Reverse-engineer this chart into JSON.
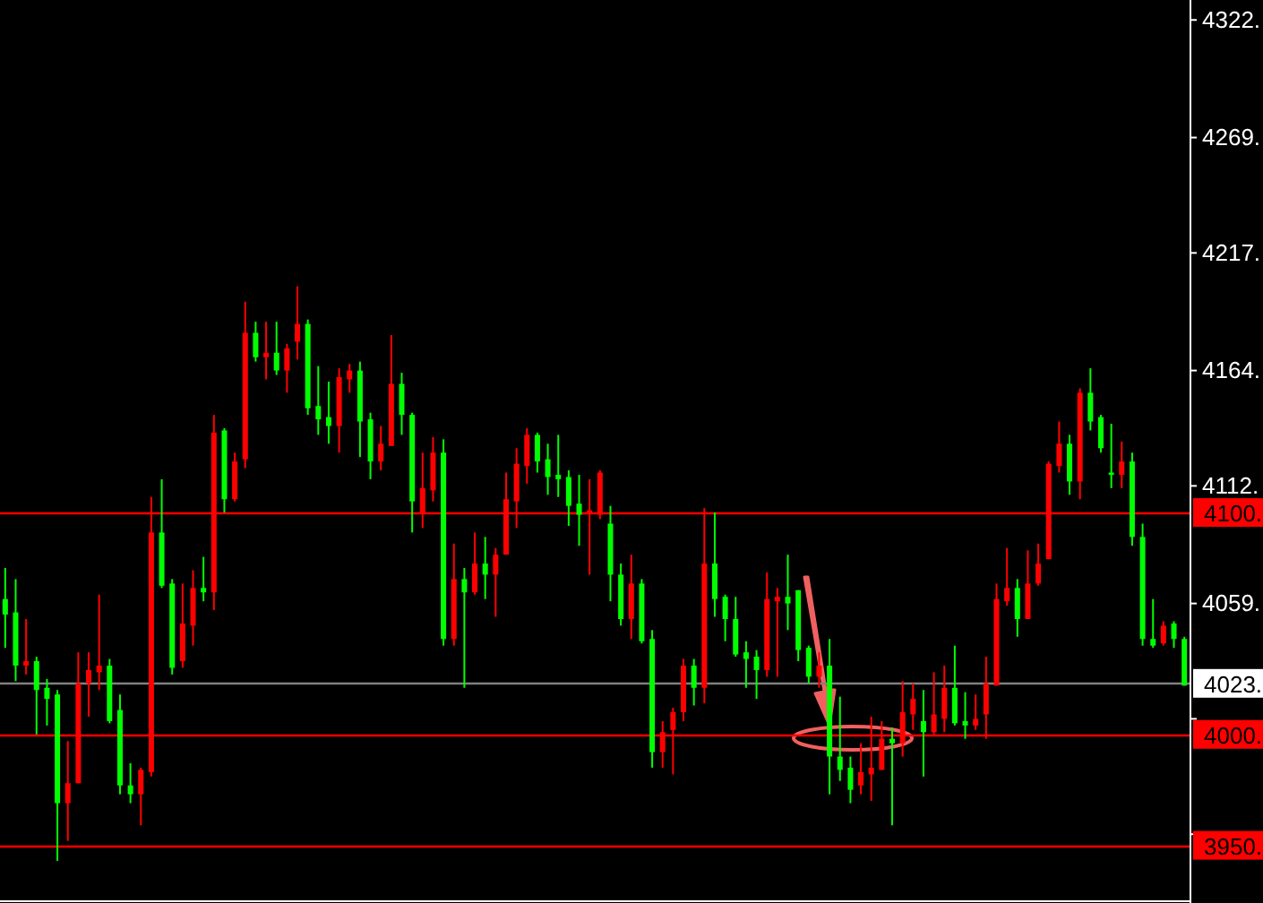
{
  "chart_data": {
    "type": "candlestick",
    "categories": [
      null,
      null,
      null,
      null,
      null,
      null,
      null,
      null,
      null,
      null,
      null,
      null,
      null,
      null,
      null,
      null,
      null,
      null,
      null,
      null,
      null,
      null,
      null,
      null,
      null,
      null,
      null,
      null,
      null,
      null,
      null,
      null,
      null,
      null,
      null,
      null,
      null,
      null,
      null,
      null,
      null,
      null,
      null,
      null,
      null,
      null,
      null,
      null,
      null,
      null,
      null,
      null,
      null,
      null,
      null,
      null,
      null,
      null,
      null,
      null,
      null,
      null,
      null,
      null,
      null,
      null,
      null,
      null,
      null,
      null,
      null,
      null,
      null,
      null,
      null,
      null,
      null,
      null,
      null,
      null,
      null,
      null,
      null,
      null,
      null,
      null,
      null,
      null,
      null,
      null,
      null,
      null,
      null,
      null,
      null,
      null,
      null,
      null,
      null,
      null,
      null,
      null,
      null,
      null,
      null,
      null,
      null,
      null,
      null,
      null,
      null,
      null,
      null,
      null
    ],
    "ohlc": [
      [
        4061,
        4075,
        4039,
        4054
      ],
      [
        4055,
        4070,
        4024,
        4031
      ],
      [
        4031,
        4052,
        4027,
        4033
      ],
      [
        4033,
        4035,
        4000,
        4020
      ],
      [
        4021,
        4025,
        4004,
        4016
      ],
      [
        4018,
        4020,
        3943,
        3969
      ],
      [
        3969,
        3997,
        3952,
        3978
      ],
      [
        3978,
        4037,
        3978,
        4023
      ],
      [
        4023,
        4037,
        4008,
        4029
      ],
      [
        4028,
        4063,
        4020,
        4031
      ],
      [
        4031,
        4034,
        4005,
        4006
      ],
      [
        4011,
        4018,
        3973,
        3977
      ],
      [
        3977,
        3987,
        3969,
        3973
      ],
      [
        3973,
        3985,
        3959,
        3984
      ],
      [
        3983,
        4107,
        3981,
        4091
      ],
      [
        4091,
        4115,
        4066,
        4067
      ],
      [
        4068,
        4070,
        4027,
        4030
      ],
      [
        4033,
        4068,
        4030,
        4050
      ],
      [
        4049,
        4074,
        4040,
        4066
      ],
      [
        4066,
        4080,
        4060,
        4064
      ],
      [
        4064,
        4144,
        4056,
        4136
      ],
      [
        4137,
        4138,
        4100,
        4106
      ],
      [
        4106,
        4127,
        4105,
        4123
      ],
      [
        4124,
        4195,
        4120,
        4181
      ],
      [
        4181,
        4186,
        4168,
        4170
      ],
      [
        4170,
        4186,
        4160,
        4172
      ],
      [
        4172,
        4186,
        4162,
        4164
      ],
      [
        4164,
        4176,
        4154,
        4174
      ],
      [
        4177,
        4202,
        4169,
        4185
      ],
      [
        4185,
        4187,
        4144,
        4147
      ],
      [
        4148,
        4166,
        4135,
        4142
      ],
      [
        4143,
        4159,
        4131,
        4139
      ],
      [
        4139,
        4165,
        4127,
        4161
      ],
      [
        4160,
        4167,
        4154,
        4164
      ],
      [
        4164,
        4168,
        4125,
        4141
      ],
      [
        4142,
        4145,
        4115,
        4123
      ],
      [
        4123,
        4139,
        4119,
        4131
      ],
      [
        4130,
        4180,
        4130,
        4158
      ],
      [
        4158,
        4163,
        4135,
        4144
      ],
      [
        4144,
        4145,
        4091,
        4105
      ],
      [
        4100,
        4127,
        4093,
        4111
      ],
      [
        4110,
        4134,
        4105,
        4127
      ],
      [
        4127,
        4133,
        4040,
        4043
      ],
      [
        4043,
        4086,
        4040,
        4070
      ],
      [
        4070,
        4075,
        4021,
        4064
      ],
      [
        4064,
        4091,
        4063,
        4077
      ],
      [
        4077,
        4089,
        4061,
        4072
      ],
      [
        4072,
        4084,
        4053,
        4081
      ],
      [
        4081,
        4118,
        4081,
        4106
      ],
      [
        4105,
        4129,
        4093,
        4122
      ],
      [
        4121,
        4138,
        4113,
        4135
      ],
      [
        4135,
        4136,
        4118,
        4123
      ],
      [
        4124,
        4131,
        4108,
        4116
      ],
      [
        4117,
        4135,
        4107,
        4115
      ],
      [
        4116,
        4119,
        4094,
        4103
      ],
      [
        4104,
        4117,
        4085,
        4099
      ],
      [
        4100,
        4115,
        4072,
        4101
      ],
      [
        4099,
        4119,
        4097,
        4118
      ],
      [
        4095,
        4103,
        4060,
        4072
      ],
      [
        4072,
        4077,
        4049,
        4052
      ],
      [
        4052,
        4081,
        4043,
        4068
      ],
      [
        4068,
        4070,
        4041,
        4042
      ],
      [
        4043,
        4047,
        3985,
        3992
      ],
      [
        3992,
        4006,
        3985,
        4001
      ],
      [
        4002,
        4012,
        3982,
        4010
      ],
      [
        4010,
        4034,
        4006,
        4031
      ],
      [
        4031,
        4034,
        4013,
        4021
      ],
      [
        4021,
        4102,
        4014,
        4077
      ],
      [
        4077,
        4100,
        4053,
        4061
      ],
      [
        4062,
        4063,
        4042,
        4052
      ],
      [
        4052,
        4062,
        4035,
        4036
      ],
      [
        4037,
        4042,
        4021,
        4034
      ],
      [
        4035,
        4038,
        4016,
        4029
      ],
      [
        4029,
        4073,
        4026,
        4061
      ],
      [
        4060,
        4066,
        4026,
        4062
      ],
      [
        4062,
        4081,
        4047,
        4059
      ],
      [
        4065,
        4065,
        4033,
        4038
      ],
      [
        4039,
        4040,
        4023,
        4026
      ],
      [
        4026,
        4037,
        4021,
        4031
      ],
      [
        4031,
        4043,
        3973,
        3990
      ],
      [
        3990,
        4017,
        3979,
        3984
      ],
      [
        3985,
        3990,
        3969,
        3975
      ],
      [
        3977,
        3996,
        3973,
        3983
      ],
      [
        3982,
        4008,
        3970,
        3985
      ],
      [
        3984,
        4006,
        3984,
        3998
      ],
      [
        3998,
        4003,
        3959,
        3996
      ],
      [
        3996,
        4024,
        3990,
        4010
      ],
      [
        4009,
        4023,
        4002,
        4016
      ],
      [
        4006,
        4020,
        3981,
        4001
      ],
      [
        4001,
        4028,
        4000,
        4009
      ],
      [
        4007,
        4031,
        4001,
        4021
      ],
      [
        4021,
        4040,
        4004,
        4005
      ],
      [
        4006,
        4019,
        3998,
        4004
      ],
      [
        4004,
        4018,
        4002,
        4007
      ],
      [
        4009,
        4035,
        3998,
        4023
      ],
      [
        4022,
        4068,
        4022,
        4061
      ],
      [
        4060,
        4084,
        4058,
        4066
      ],
      [
        4066,
        4070,
        4044,
        4052
      ],
      [
        4052,
        4083,
        4052,
        4068
      ],
      [
        4068,
        4086,
        4067,
        4077
      ],
      [
        4079,
        4123,
        4079,
        4122
      ],
      [
        4121,
        4141,
        4118,
        4131
      ],
      [
        4131,
        4135,
        4108,
        4114
      ],
      [
        4114,
        4156,
        4106,
        4154
      ],
      [
        4154,
        4165,
        4137,
        4141
      ],
      [
        4143,
        4144,
        4127,
        4129
      ],
      [
        4118,
        4140,
        4111,
        4117
      ],
      [
        4117,
        4132,
        4111,
        4123
      ],
      [
        4123,
        4127,
        4085,
        4089
      ],
      [
        4089,
        4095,
        4040,
        4043
      ],
      [
        4043,
        4061,
        4039,
        4040
      ],
      [
        4041,
        4051,
        4040,
        4049
      ],
      [
        4050,
        4051,
        4039,
        4043
      ],
      [
        4043,
        4044,
        4022,
        4022
      ]
    ],
    "colors": [
      "#00ff00",
      "#00ff00",
      "#ff0000",
      "#00ff00",
      "#00ff00",
      "#00ff00",
      "#ff0000",
      "#ff0000",
      "#ff0000",
      "#ff0000",
      "#00ff00",
      "#00ff00",
      "#00ff00",
      "#ff0000",
      "#ff0000",
      "#00ff00",
      "#00ff00",
      "#ff0000",
      "#ff0000",
      "#00ff00",
      "#ff0000",
      "#00ff00",
      "#ff0000",
      "#ff0000",
      "#00ff00",
      "#ff0000",
      "#00ff00",
      "#ff0000",
      "#ff0000",
      "#00ff00",
      "#00ff00",
      "#00ff00",
      "#ff0000",
      "#ff0000",
      "#00ff00",
      "#00ff00",
      "#ff0000",
      "#ff0000",
      "#00ff00",
      "#00ff00",
      "#ff0000",
      "#ff0000",
      "#00ff00",
      "#ff0000",
      "#00ff00",
      "#ff0000",
      "#00ff00",
      "#ff0000",
      "#ff0000",
      "#ff0000",
      "#ff0000",
      "#00ff00",
      "#00ff00",
      "#00ff00",
      "#00ff00",
      "#00ff00",
      "#ff0000",
      "#ff0000",
      "#00ff00",
      "#00ff00",
      "#ff0000",
      "#00ff00",
      "#00ff00",
      "#ff0000",
      "#ff0000",
      "#ff0000",
      "#00ff00",
      "#ff0000",
      "#00ff00",
      "#00ff00",
      "#00ff00",
      "#00ff00",
      "#00ff00",
      "#ff0000",
      "#ff0000",
      "#00ff00",
      "#00ff00",
      "#00ff00",
      "#ff0000",
      "#00ff00",
      "#00ff00",
      "#00ff00",
      "#ff0000",
      "#ff0000",
      "#ff0000",
      "#00ff00",
      "#ff0000",
      "#ff0000",
      "#00ff00",
      "#ff0000",
      "#ff0000",
      "#00ff00",
      "#00ff00",
      "#ff0000",
      "#ff0000",
      "#ff0000",
      "#ff0000",
      "#00ff00",
      "#ff0000",
      "#ff0000",
      "#ff0000",
      "#ff0000",
      "#00ff00",
      "#ff0000",
      "#00ff00",
      "#00ff00",
      "#00ff00",
      "#ff0000",
      "#00ff00",
      "#00ff00",
      "#00ff00",
      "#ff0000",
      "#00ff00",
      "#00ff00"
    ],
    "ylim": [
      3924,
      4331
    ],
    "yticks": [
      {
        "value": 4322,
        "label": "4322."
      },
      {
        "value": 4269,
        "label": "4269."
      },
      {
        "value": 4217,
        "label": "4217."
      },
      {
        "value": 4164,
        "label": "4164."
      },
      {
        "value": 4112,
        "label": "4112."
      },
      {
        "value": 4059,
        "label": "4059."
      },
      {
        "value": 4007,
        "label": null
      },
      {
        "value": 3955,
        "label": null
      }
    ],
    "ref_lines": [
      {
        "axis": "y",
        "value": 4100,
        "label": "4100.",
        "color": "#ff0000"
      },
      {
        "axis": "y",
        "value": 4000,
        "label": "4000.",
        "color": "#ff0000"
      },
      {
        "axis": "y",
        "value": 3950,
        "label": "3950.",
        "color": "#ff0000"
      },
      {
        "axis": "y",
        "value": 4023,
        "label": "4023.",
        "color": "#808080"
      }
    ],
    "grid": false
  }
}
